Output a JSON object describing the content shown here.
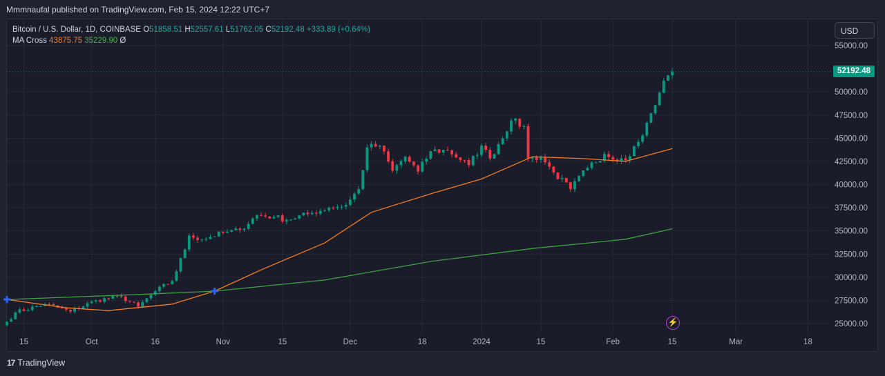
{
  "header": {
    "published": "Mmmnaufal published on TradingView.com, Feb 15, 2024 12:22 UTC+7"
  },
  "legend": {
    "symbol": "Bitcoin / U.S. Dollar, 1D, COINBASE",
    "o_label": "O",
    "o_value": "51858.51",
    "h_label": "H",
    "h_value": "52557.61",
    "l_label": "L",
    "l_value": "51762.05",
    "c_label": "C",
    "c_value": "52192.48",
    "change": "+333.89 (+0.64%)",
    "ma_label": "MA Cross",
    "ma_fast": "43875.75",
    "ma_slow": "35229.90",
    "ma_extra": "Ø"
  },
  "currency_button": "USD",
  "last_price_label": "52192.48",
  "footer": {
    "brand": "TradingView",
    "logo": "17"
  },
  "colors": {
    "up": "#089981",
    "down": "#f23645",
    "ma_fast": "#f57c1f",
    "ma_slow": "#43a047",
    "cross_marker": "#2962ff",
    "background": "#1a1d29"
  },
  "chart_data": {
    "type": "candlestick",
    "title": "Bitcoin / U.S. Dollar, 1D, COINBASE",
    "ylim": [
      24000,
      57000
    ],
    "y_ticks": [
      25000,
      27500,
      30000,
      32500,
      35000,
      37500,
      40000,
      42500,
      45000,
      47500,
      50000,
      55000
    ],
    "y_tick_labels": [
      "25000.00",
      "27500.00",
      "30000.00",
      "32500.00",
      "35000.00",
      "37500.00",
      "40000.00",
      "42500.00",
      "45000.00",
      "47500.00",
      "50000.00",
      "55000.00"
    ],
    "x_start_date": "2023-09-11",
    "x_end_date": "2024-03-23",
    "x_ticks": [
      {
        "date": "2023-09-15",
        "label": "15"
      },
      {
        "date": "2023-10-01",
        "label": "Oct"
      },
      {
        "date": "2023-10-16",
        "label": "16"
      },
      {
        "date": "2023-11-01",
        "label": "Nov"
      },
      {
        "date": "2023-11-15",
        "label": "15"
      },
      {
        "date": "2023-12-01",
        "label": "Dec"
      },
      {
        "date": "2023-12-18",
        "label": "18"
      },
      {
        "date": "2024-01-01",
        "label": "2024"
      },
      {
        "date": "2024-01-15",
        "label": "15"
      },
      {
        "date": "2024-02-01",
        "label": "Feb"
      },
      {
        "date": "2024-02-15",
        "label": "15"
      },
      {
        "date": "2024-03-01",
        "label": "Mar"
      },
      {
        "date": "2024-03-18",
        "label": "18"
      }
    ],
    "last_price": 52192.48,
    "close_anchors": [
      [
        "2023-09-11",
        25200
      ],
      [
        "2023-09-13",
        26200
      ],
      [
        "2023-09-20",
        27100
      ],
      [
        "2023-09-26",
        26300
      ],
      [
        "2023-10-02",
        27500
      ],
      [
        "2023-10-08",
        27900
      ],
      [
        "2023-10-12",
        26800
      ],
      [
        "2023-10-16",
        28500
      ],
      [
        "2023-10-20",
        29600
      ],
      [
        "2023-10-23",
        33000
      ],
      [
        "2023-10-24",
        34500
      ],
      [
        "2023-10-27",
        34100
      ],
      [
        "2023-11-01",
        34800
      ],
      [
        "2023-11-05",
        35100
      ],
      [
        "2023-11-09",
        36700
      ],
      [
        "2023-11-13",
        36500
      ],
      [
        "2023-11-16",
        36200
      ],
      [
        "2023-11-21",
        36800
      ],
      [
        "2023-11-26",
        37500
      ],
      [
        "2023-11-30",
        37800
      ],
      [
        "2023-12-03",
        39500
      ],
      [
        "2023-12-05",
        44000
      ],
      [
        "2023-12-08",
        44200
      ],
      [
        "2023-12-11",
        41500
      ],
      [
        "2023-12-14",
        43000
      ],
      [
        "2023-12-17",
        41400
      ],
      [
        "2023-12-20",
        43600
      ],
      [
        "2023-12-24",
        43700
      ],
      [
        "2023-12-29",
        42100
      ],
      [
        "2024-01-01",
        44200
      ],
      [
        "2024-01-03",
        42800
      ],
      [
        "2024-01-08",
        46900
      ],
      [
        "2024-01-11",
        46300
      ],
      [
        "2024-01-12",
        42800
      ],
      [
        "2024-01-15",
        43000
      ],
      [
        "2024-01-18",
        41300
      ],
      [
        "2024-01-22",
        39500
      ],
      [
        "2024-01-26",
        41800
      ],
      [
        "2024-01-30",
        43300
      ],
      [
        "2024-02-04",
        42600
      ],
      [
        "2024-02-08",
        45300
      ],
      [
        "2024-02-10",
        47700
      ],
      [
        "2024-02-12",
        49900
      ],
      [
        "2024-02-14",
        51800
      ],
      [
        "2024-02-15",
        52192.48
      ]
    ],
    "series": [
      {
        "name": "MA fast",
        "value": 43875.75,
        "points": [
          [
            "2023-09-11",
            27600
          ],
          [
            "2023-09-25",
            26700
          ],
          [
            "2023-10-05",
            26400
          ],
          [
            "2023-10-20",
            27100
          ],
          [
            "2023-10-30",
            28500
          ],
          [
            "2023-11-10",
            30800
          ],
          [
            "2023-11-25",
            33700
          ],
          [
            "2023-12-06",
            37000
          ],
          [
            "2023-12-20",
            39000
          ],
          [
            "2024-01-01",
            40600
          ],
          [
            "2024-01-13",
            43000
          ],
          [
            "2024-01-25",
            42800
          ],
          [
            "2024-02-04",
            42500
          ],
          [
            "2024-02-15",
            43875.75
          ]
        ]
      },
      {
        "name": "MA slow",
        "value": 35229.9,
        "points": [
          [
            "2023-09-11",
            27600
          ],
          [
            "2023-10-10",
            28100
          ],
          [
            "2023-10-30",
            28500
          ],
          [
            "2023-11-25",
            29700
          ],
          [
            "2023-12-20",
            31700
          ],
          [
            "2024-01-13",
            33100
          ],
          [
            "2024-02-04",
            34100
          ],
          [
            "2024-02-15",
            35229.9
          ]
        ]
      }
    ],
    "markers": [
      {
        "date": "2023-09-11",
        "value": 27600,
        "type": "cross"
      },
      {
        "date": "2023-10-30",
        "value": 28500,
        "type": "cross"
      }
    ]
  }
}
